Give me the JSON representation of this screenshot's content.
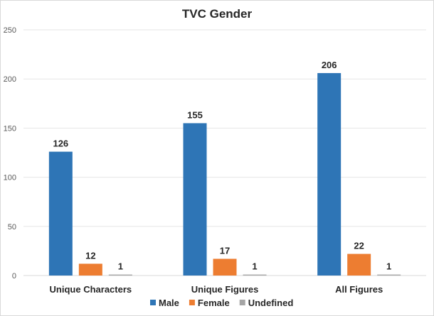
{
  "chart_data": {
    "type": "bar",
    "title": "TVC Gender",
    "categories": [
      "Unique Characters",
      "Unique Figures",
      "All Figures"
    ],
    "series": [
      {
        "name": "Male",
        "values": [
          126,
          155,
          206
        ],
        "color": "#2e75b6"
      },
      {
        "name": "Female",
        "values": [
          12,
          17,
          22
        ],
        "color": "#ed7d31"
      },
      {
        "name": "Undefined",
        "values": [
          1,
          1,
          1
        ],
        "color": "#a5a5a5"
      }
    ],
    "xlabel": "",
    "ylabel": "",
    "ylim": [
      0,
      250
    ],
    "yticks": [
      0,
      50,
      100,
      150,
      200,
      250
    ],
    "grid": true,
    "legend_position": "bottom"
  }
}
